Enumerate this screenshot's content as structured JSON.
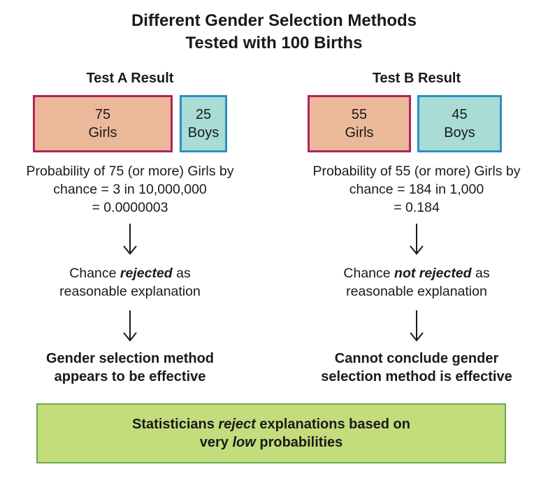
{
  "title": {
    "line1": "Different Gender Selection Methods",
    "line2": "Tested with 100 Births"
  },
  "test_a": {
    "title": "Test A Result",
    "girls": {
      "count": "75",
      "label": "Girls"
    },
    "boys": {
      "count": "25",
      "label": "Boys"
    },
    "probability": {
      "line1": "Probability of 75 (or more) Girls by",
      "line2": "chance = 3 in 10,000,000",
      "line3": "= 0.0000003"
    },
    "chance": {
      "prefix": "Chance ",
      "emphasis": "rejected",
      "suffix": " as",
      "line2": "reasonable explanation"
    },
    "conclusion": {
      "line1": "Gender selection method",
      "line2": "appears to be effective"
    }
  },
  "test_b": {
    "title": "Test B Result",
    "girls": {
      "count": "55",
      "label": "Girls"
    },
    "boys": {
      "count": "45",
      "label": "Boys"
    },
    "probability": {
      "line1": "Probability of 55 (or more) Girls by",
      "line2": "chance = 184 in 1,000",
      "line3": "= 0.184"
    },
    "chance": {
      "prefix": "Chance ",
      "emphasis": "not rejected",
      "suffix": " as",
      "line2": "reasonable explanation"
    },
    "conclusion": {
      "line1": "Cannot conclude gender",
      "line2": "selection method is effective"
    }
  },
  "banner": {
    "prefix": "Statisticians ",
    "emphasis1": "reject",
    "middle": " explanations based on",
    "line2_prefix": "very ",
    "emphasis2": "low",
    "line2_suffix": " probabilities"
  },
  "colors": {
    "girls_fill": "#ebb99a",
    "girls_border": "#b0245a",
    "boys_fill": "#a8dcd5",
    "boys_border": "#2a8fc4",
    "banner_fill": "#c3dc7c",
    "banner_border": "#6aa84f"
  }
}
